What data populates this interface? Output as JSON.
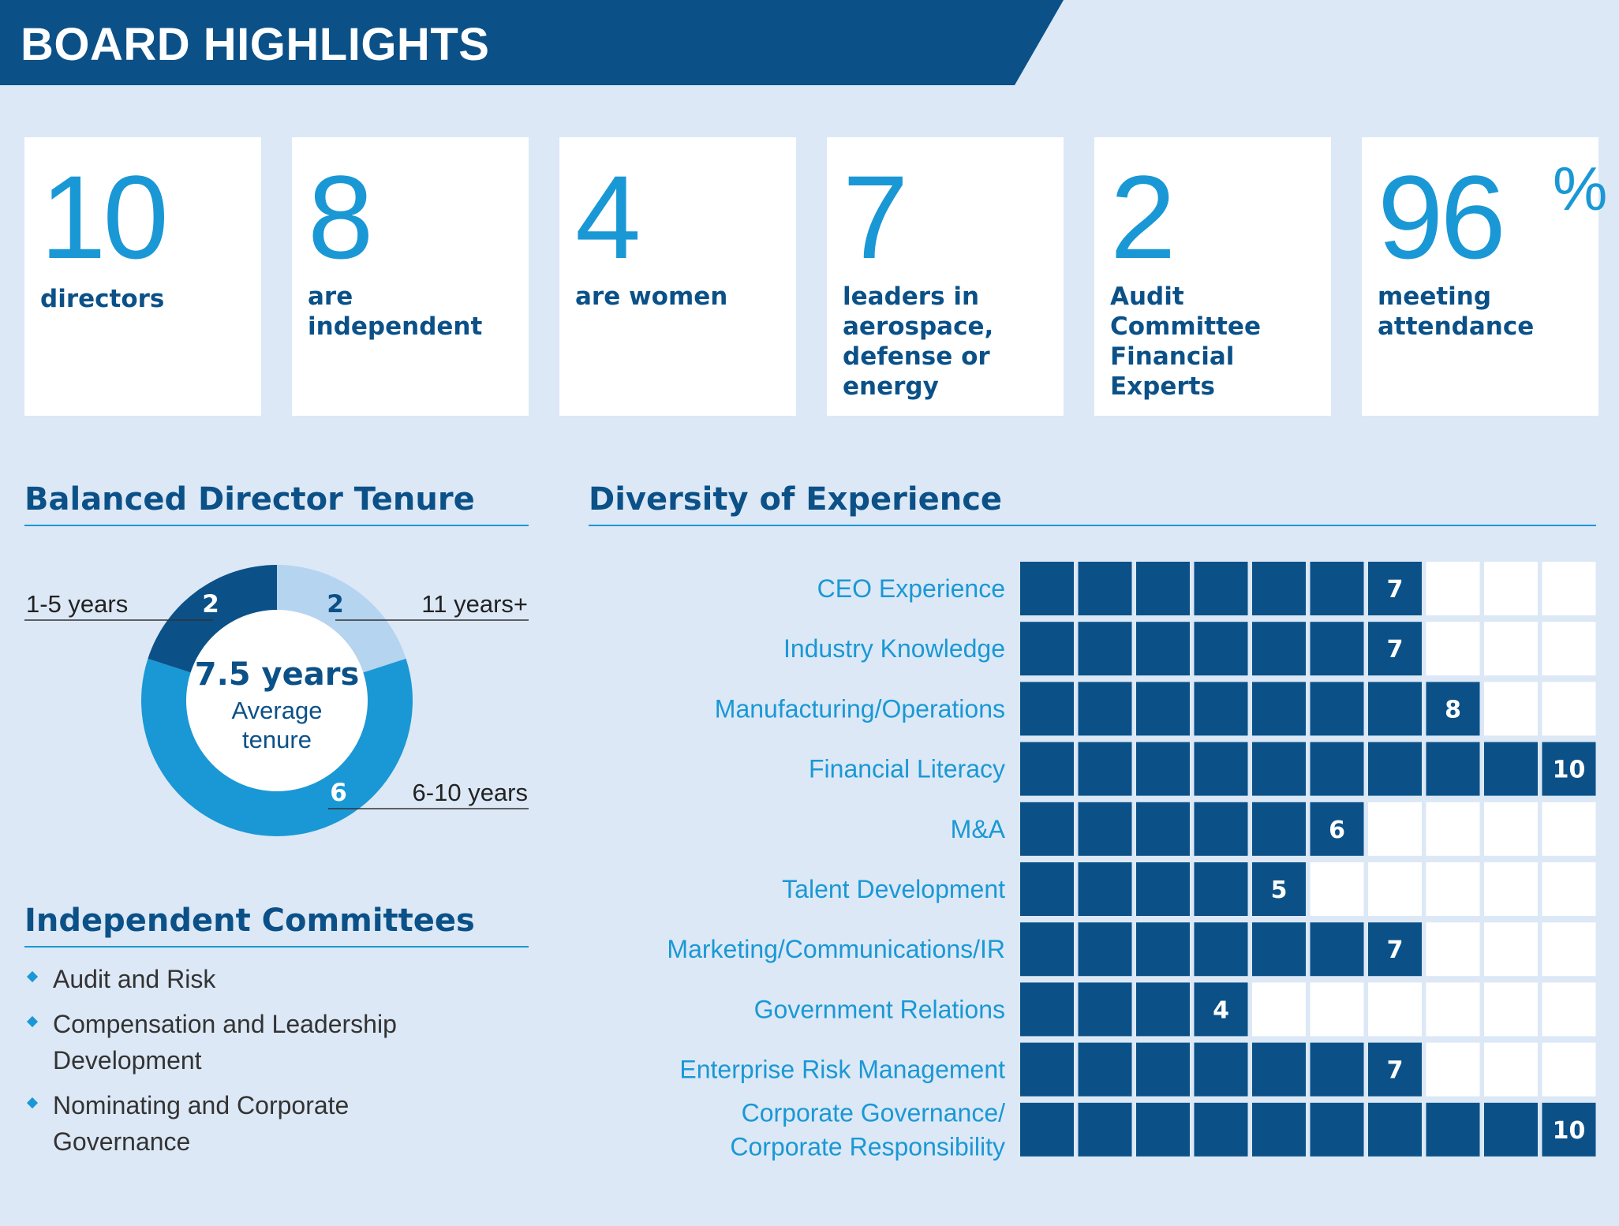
{
  "header": {
    "title": "BOARD HIGHLIGHTS"
  },
  "colors": {
    "dark_blue": "#0b5188",
    "accent_blue": "#1a98d5",
    "light_blue": "#b5d4ef",
    "background": "#dce8f6"
  },
  "stats": [
    {
      "number": "10",
      "label": "directors"
    },
    {
      "number": "8",
      "label": "are independent"
    },
    {
      "number": "4",
      "label": "are women"
    },
    {
      "number": "7",
      "label": "leaders in aerospace, defense or energy"
    },
    {
      "number": "2",
      "label": "Audit Committee Financial Experts"
    },
    {
      "number": "96",
      "suffix": "%",
      "label": "meeting attendance"
    }
  ],
  "tenure": {
    "title": "Balanced Director Tenure",
    "center_value": "7.5 years",
    "center_label_1": "Average",
    "center_label_2": "tenure"
  },
  "committees": {
    "title": "Independent Committees",
    "items": [
      "Audit and Risk",
      "Compensation and Leadership Development",
      "Nominating and Corporate Governance"
    ]
  },
  "chart_data": [
    {
      "type": "pie",
      "title": "Balanced Director Tenure",
      "categories": [
        "11 years+",
        "6-10 years",
        "1-5 years"
      ],
      "values": [
        2,
        6,
        2
      ],
      "colors": [
        "#b5d4ef",
        "#1a98d5",
        "#0b5188"
      ],
      "annotation": "7.5 years Average tenure"
    },
    {
      "type": "bar",
      "title": "Diversity of Experience",
      "max": 10,
      "categories": [
        "CEO Experience",
        "Industry Knowledge",
        "Manufacturing/Operations",
        "Financial Literacy",
        "M&A",
        "Talent Development",
        "Marketing/Communications/IR",
        "Government Relations",
        "Enterprise Risk Management",
        "Corporate Governance/ Corporate Responsibility"
      ],
      "label_lines": [
        [
          "CEO Experience"
        ],
        [
          "Industry Knowledge"
        ],
        [
          "Manufacturing/Operations"
        ],
        [
          "Financial Literacy"
        ],
        [
          "M&A"
        ],
        [
          "Talent Development"
        ],
        [
          "Marketing/Communications/IR"
        ],
        [
          "Government Relations"
        ],
        [
          "Enterprise Risk Management"
        ],
        [
          "Corporate Governance/",
          "Corporate Responsibility"
        ]
      ],
      "values": [
        7,
        7,
        8,
        10,
        6,
        5,
        7,
        4,
        7,
        10
      ]
    }
  ]
}
